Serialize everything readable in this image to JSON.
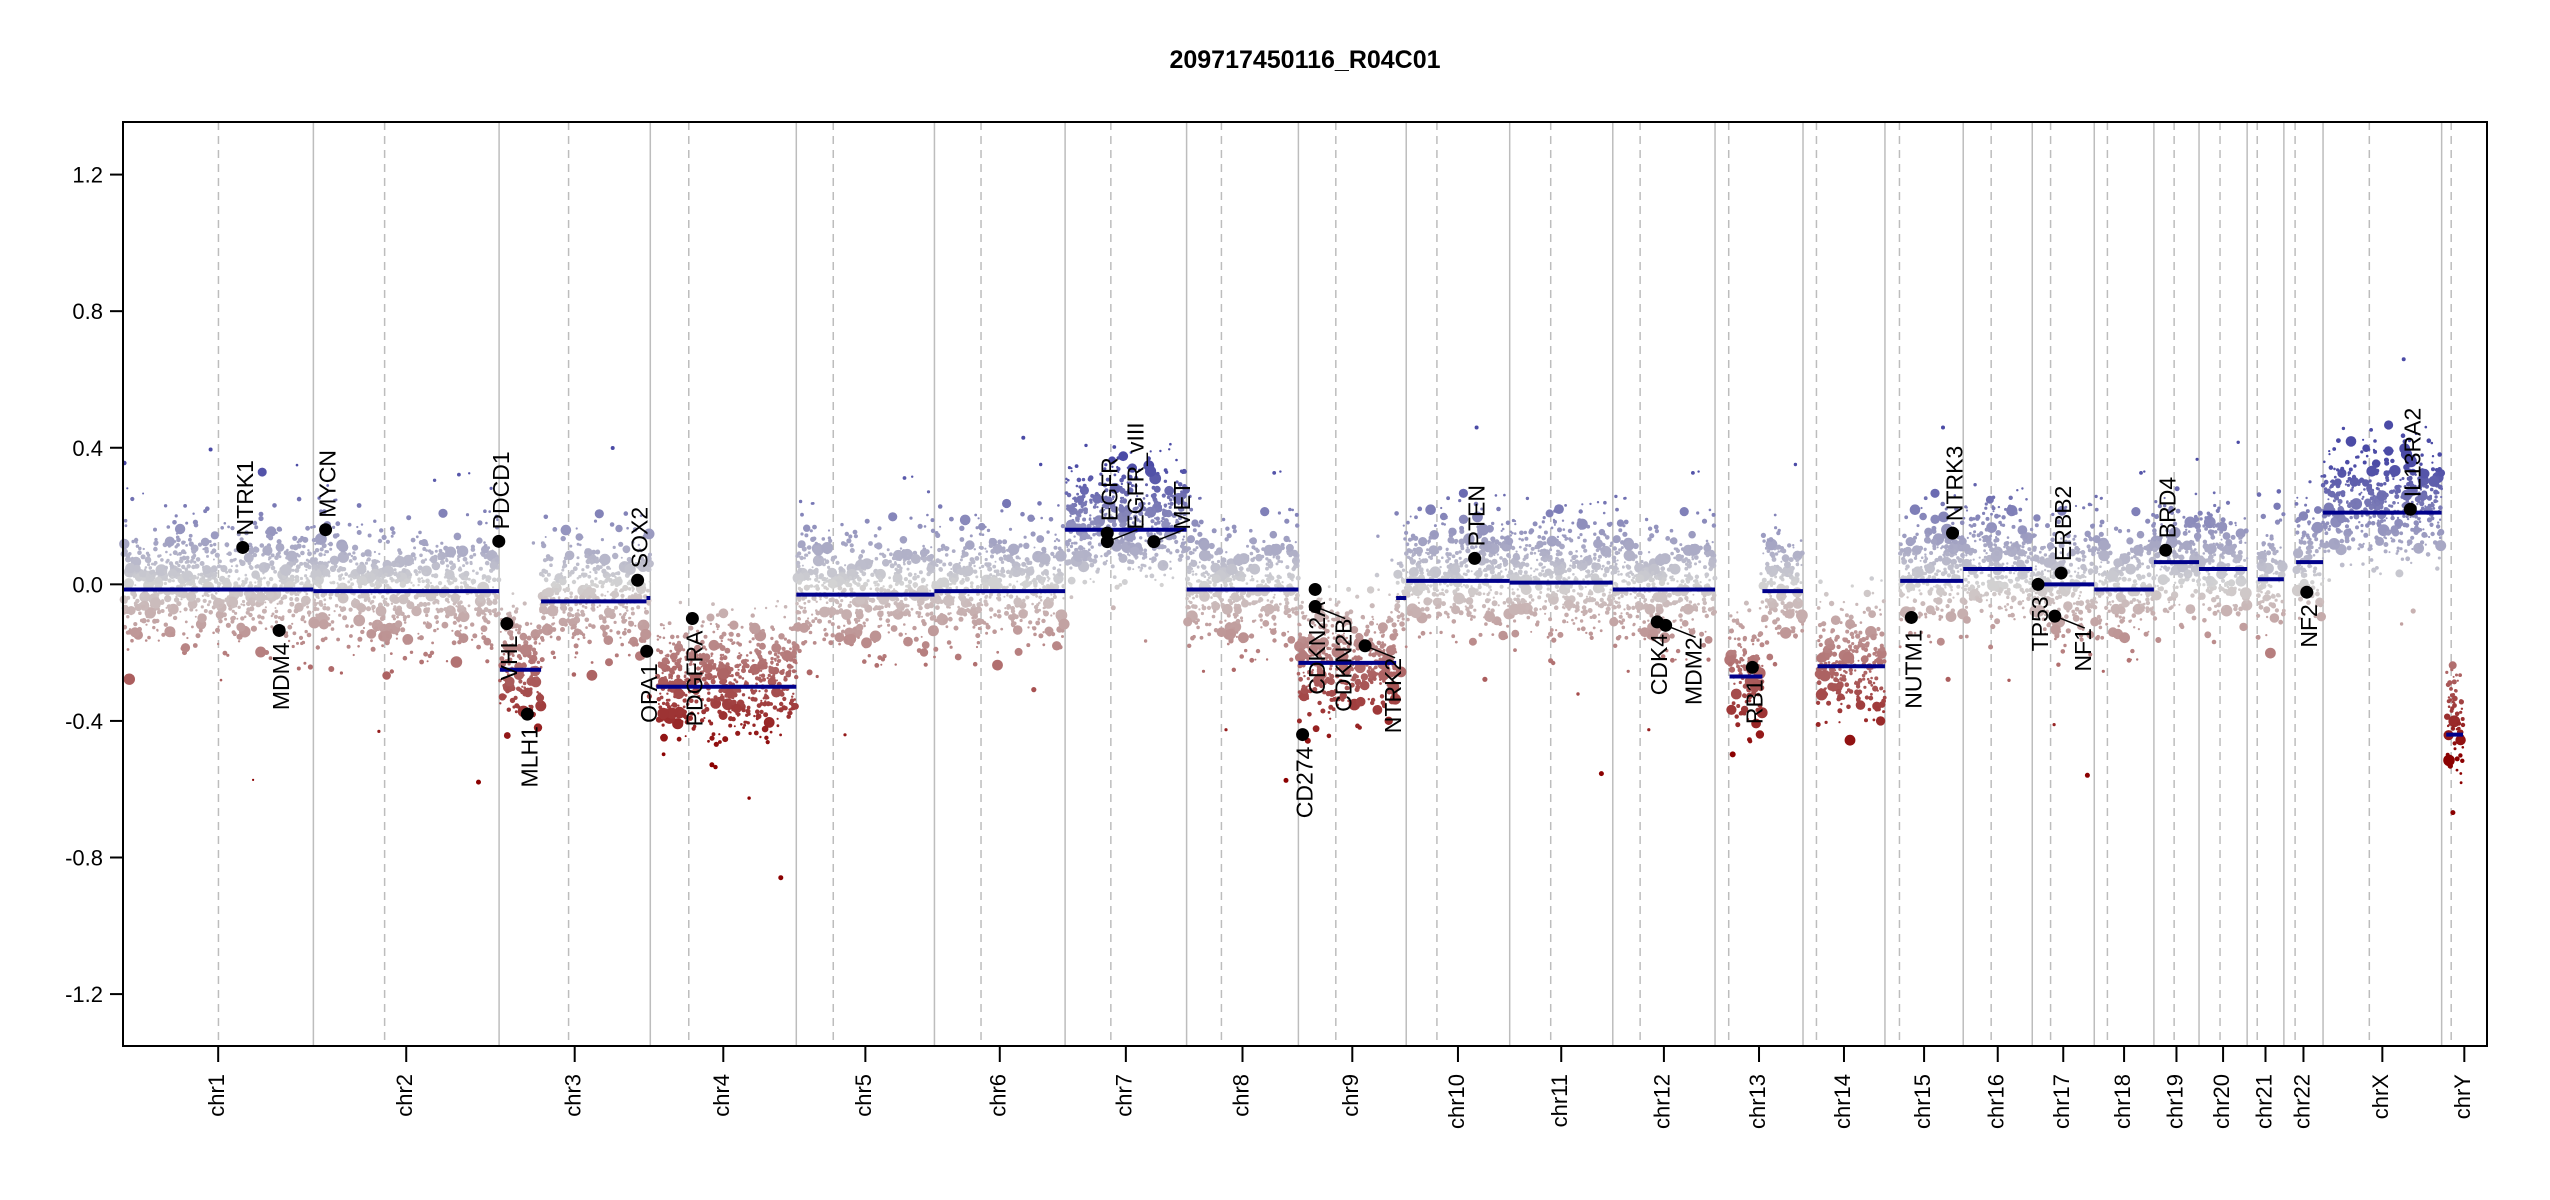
{
  "chart_data": {
    "type": "scatter",
    "title": "209717450116_R04C01",
    "xlabel": "",
    "ylabel": "",
    "ylim": [
      -1.352,
      1.354
    ],
    "yticks": [
      1.2,
      0.8,
      0.4,
      0.0,
      -0.4,
      -0.8,
      -1.2
    ],
    "ytick_labels": [
      "1.2",
      "0.8",
      "0.4",
      "0.0",
      "-0.4",
      "-0.8",
      "-1.2"
    ],
    "grid": "chromosome boundaries (solid) and centromeres (dashed)",
    "colors": {
      "gain": "#4b4ba6",
      "neutral": "#d3d3d3",
      "loss": "#8b0000",
      "segment": "#00008b",
      "gene": "#000000",
      "boundary": "#bdbdbd"
    },
    "chromosomes": [
      {
        "name": "chr1",
        "length_mb": 249.3,
        "centromere_mb": 125.0
      },
      {
        "name": "chr2",
        "length_mb": 243.2,
        "centromere_mb": 93.3
      },
      {
        "name": "chr3",
        "length_mb": 198.0,
        "centromere_mb": 91.0
      },
      {
        "name": "chr4",
        "length_mb": 191.2,
        "centromere_mb": 50.4
      },
      {
        "name": "chr5",
        "length_mb": 180.9,
        "centromere_mb": 48.4
      },
      {
        "name": "chr6",
        "length_mb": 171.1,
        "centromere_mb": 61.0
      },
      {
        "name": "chr7",
        "length_mb": 159.1,
        "centromere_mb": 59.9
      },
      {
        "name": "chr8",
        "length_mb": 146.4,
        "centromere_mb": 45.6
      },
      {
        "name": "chr9",
        "length_mb": 141.2,
        "centromere_mb": 49.0
      },
      {
        "name": "chr10",
        "length_mb": 135.5,
        "centromere_mb": 40.2
      },
      {
        "name": "chr11",
        "length_mb": 135.0,
        "centromere_mb": 53.7
      },
      {
        "name": "chr12",
        "length_mb": 133.9,
        "centromere_mb": 35.8
      },
      {
        "name": "chr13",
        "length_mb": 115.2,
        "centromere_mb": 17.9
      },
      {
        "name": "chr14",
        "length_mb": 107.3,
        "centromere_mb": 17.6
      },
      {
        "name": "chr15",
        "length_mb": 102.5,
        "centromere_mb": 19.0
      },
      {
        "name": "chr16",
        "length_mb": 90.4,
        "centromere_mb": 36.6
      },
      {
        "name": "chr17",
        "length_mb": 81.2,
        "centromere_mb": 24.0
      },
      {
        "name": "chr18",
        "length_mb": 78.1,
        "centromere_mb": 17.2
      },
      {
        "name": "chr19",
        "length_mb": 59.1,
        "centromere_mb": 26.5
      },
      {
        "name": "chr20",
        "length_mb": 63.0,
        "centromere_mb": 27.5
      },
      {
        "name": "chr21",
        "length_mb": 48.1,
        "centromere_mb": 13.2
      },
      {
        "name": "chr22",
        "length_mb": 51.3,
        "centromere_mb": 14.7
      },
      {
        "name": "chrX",
        "length_mb": 155.3,
        "centromere_mb": 60.6
      },
      {
        "name": "chrY",
        "length_mb": 59.4,
        "centromere_mb": 12.5
      }
    ],
    "segments": [
      {
        "chr": "chr1",
        "start": 0,
        "end": 249.3,
        "mean": -0.015
      },
      {
        "chr": "chr2",
        "start": 0,
        "end": 243.2,
        "mean": -0.02
      },
      {
        "chr": "chr3",
        "start": 1,
        "end": 55,
        "mean": -0.25
      },
      {
        "chr": "chr3",
        "start": 55,
        "end": 193,
        "mean": -0.05
      },
      {
        "chr": "chr3",
        "start": 193,
        "end": 198,
        "mean": -0.04
      },
      {
        "chr": "chr4",
        "start": 8,
        "end": 191.2,
        "mean": -0.3
      },
      {
        "chr": "chr5",
        "start": 0,
        "end": 180.9,
        "mean": -0.03
      },
      {
        "chr": "chr6",
        "start": 0,
        "end": 171.1,
        "mean": -0.02
      },
      {
        "chr": "chr7",
        "start": 0,
        "end": 159.1,
        "mean": 0.16
      },
      {
        "chr": "chr8",
        "start": 0,
        "end": 146.4,
        "mean": -0.015
      },
      {
        "chr": "chr9",
        "start": 0,
        "end": 128,
        "mean": -0.23
      },
      {
        "chr": "chr9",
        "start": 128,
        "end": 141.2,
        "mean": -0.04
      },
      {
        "chr": "chr10",
        "start": 0,
        "end": 135.5,
        "mean": 0.01
      },
      {
        "chr": "chr11",
        "start": 0,
        "end": 135.0,
        "mean": 0.005
      },
      {
        "chr": "chr12",
        "start": 0,
        "end": 133.9,
        "mean": -0.015
      },
      {
        "chr": "chr13",
        "start": 19,
        "end": 62,
        "mean": -0.27
      },
      {
        "chr": "chr13",
        "start": 62,
        "end": 115.2,
        "mean": -0.02
      },
      {
        "chr": "chr14",
        "start": 19,
        "end": 107.3,
        "mean": -0.24
      },
      {
        "chr": "chr15",
        "start": 20,
        "end": 102.5,
        "mean": 0.01
      },
      {
        "chr": "chr16",
        "start": 0,
        "end": 90.4,
        "mean": 0.045
      },
      {
        "chr": "chr17",
        "start": 0,
        "end": 81.2,
        "mean": 0.0
      },
      {
        "chr": "chr18",
        "start": 0,
        "end": 78.1,
        "mean": -0.015
      },
      {
        "chr": "chr19",
        "start": 0,
        "end": 59.1,
        "mean": 0.065
      },
      {
        "chr": "chr20",
        "start": 0,
        "end": 63.0,
        "mean": 0.045
      },
      {
        "chr": "chr21",
        "start": 14,
        "end": 48.1,
        "mean": 0.015
      },
      {
        "chr": "chr22",
        "start": 16,
        "end": 51.3,
        "mean": 0.065
      },
      {
        "chr": "chrX",
        "start": 0,
        "end": 155.3,
        "mean": 0.21
      },
      {
        "chr": "chrY",
        "start": 6,
        "end": 28,
        "mean": -0.44
      }
    ],
    "genes": [
      {
        "name": "NTRK1",
        "chr": "chr1",
        "pos": 156.8,
        "value": 0.108
      },
      {
        "name": "MDM4",
        "chr": "chr1",
        "pos": 204.5,
        "value": -0.135
      },
      {
        "name": "MYCN",
        "chr": "chr2",
        "pos": 16.0,
        "value": 0.16
      },
      {
        "name": "PDCD1",
        "chr": "chr2",
        "pos": 242.8,
        "value": 0.126
      },
      {
        "name": "VHL",
        "chr": "chr3",
        "pos": 10.2,
        "value": -0.115
      },
      {
        "name": "MLH1",
        "chr": "chr3",
        "pos": 37.0,
        "value": -0.38
      },
      {
        "name": "SOX2",
        "chr": "chr3",
        "pos": 181.4,
        "value": 0.012
      },
      {
        "name": "OPA1",
        "chr": "chr3",
        "pos": 193.3,
        "value": -0.196
      },
      {
        "name": "PDGFRA",
        "chr": "chr4",
        "pos": 55.1,
        "value": -0.1
      },
      {
        "name": "EGFR",
        "chr": "chr7",
        "pos": 55.2,
        "value": 0.15
      },
      {
        "name": "EGFR_vIII",
        "chr": "chr7",
        "pos": 55.3,
        "value": 0.125
      },
      {
        "name": "MET",
        "chr": "chr7",
        "pos": 116.3,
        "value": 0.125
      },
      {
        "name": "CD274",
        "chr": "chr9",
        "pos": 5.5,
        "value": -0.44
      },
      {
        "name": "CDKN2A",
        "chr": "chr9",
        "pos": 21.97,
        "value": -0.015
      },
      {
        "name": "CDKN2B",
        "chr": "chr9",
        "pos": 22.0,
        "value": -0.065
      },
      {
        "name": "NTRK2",
        "chr": "chr9",
        "pos": 87.3,
        "value": -0.18
      },
      {
        "name": "PTEN",
        "chr": "chr10",
        "pos": 89.6,
        "value": 0.076
      },
      {
        "name": "CDK4",
        "chr": "chr12",
        "pos": 58.1,
        "value": -0.11
      },
      {
        "name": "MDM2",
        "chr": "chr12",
        "pos": 69.2,
        "value": -0.12
      },
      {
        "name": "RB1",
        "chr": "chr13",
        "pos": 48.9,
        "value": -0.243
      },
      {
        "name": "NUTM1",
        "chr": "chr15",
        "pos": 34.6,
        "value": -0.097
      },
      {
        "name": "NTRK3",
        "chr": "chr15",
        "pos": 88.5,
        "value": 0.15
      },
      {
        "name": "TP53",
        "chr": "chr17",
        "pos": 7.6,
        "value": 0.0
      },
      {
        "name": "NF1",
        "chr": "chr17",
        "pos": 29.5,
        "value": -0.093
      },
      {
        "name": "ERBB2",
        "chr": "chr17",
        "pos": 37.8,
        "value": 0.033
      },
      {
        "name": "BRD4",
        "chr": "chr19",
        "pos": 15.4,
        "value": 0.1
      },
      {
        "name": "NF2",
        "chr": "chr22",
        "pos": 30.0,
        "value": -0.023
      },
      {
        "name": "IL13RA2",
        "chr": "chrX",
        "pos": 114.3,
        "value": 0.22
      }
    ]
  }
}
